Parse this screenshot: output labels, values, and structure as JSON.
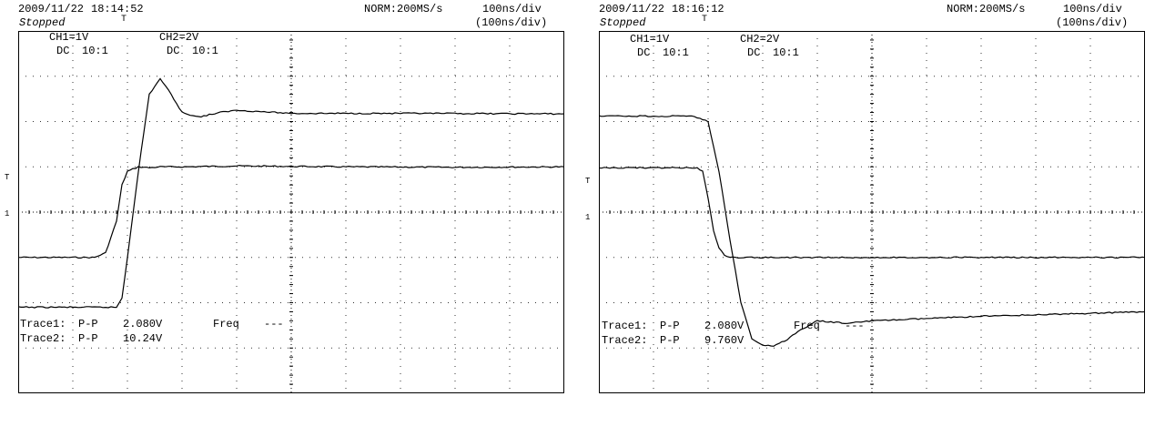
{
  "chart_data": [
    {
      "type": "line",
      "header": {
        "date": "2009/11/22",
        "time": "18:14:52",
        "status": "Stopped",
        "acq": "NORM:200MS/s",
        "timebase": "100ns/div",
        "timebase2": "(100ns/div)",
        "trig_marker": "T"
      },
      "channels": [
        {
          "label": "CH1=1V",
          "coupling": "DC",
          "probe": "10:1"
        },
        {
          "label": "CH2=2V",
          "coupling": "DC",
          "probe": "10:1"
        }
      ],
      "measurements": [
        {
          "trace": "Trace1:",
          "type": "P-P",
          "value": "2.080V"
        },
        {
          "trace": "Trace2:",
          "type": "P-P",
          "value": "10.24V"
        }
      ],
      "freq": {
        "label": "Freq",
        "value": "---"
      },
      "trig_level_marker": "T",
      "gnd_marker": "1",
      "x_divisions": 10,
      "y_divisions": 8,
      "series": [
        {
          "x": [
            0,
            1.4,
            1.6,
            1.8,
            1.9,
            2.0,
            2.2,
            2.4,
            2.6,
            3.0,
            4.0,
            6.0,
            8.0,
            10.0
          ],
          "y": [
            -1.0,
            -1.0,
            -0.9,
            -0.2,
            0.6,
            0.9,
            1.0,
            0.98,
            1.0,
            1.0,
            1.02,
            1.0,
            0.99,
            1.0
          ]
        },
        {
          "x": [
            0,
            1.8,
            1.9,
            2.0,
            2.2,
            2.4,
            2.6,
            2.8,
            3.0,
            3.3,
            3.7,
            4.0,
            5.0,
            7.0,
            10.0
          ],
          "y": [
            -2.1,
            -2.1,
            -1.9,
            -1.0,
            0.9,
            2.6,
            2.95,
            2.6,
            2.2,
            2.1,
            2.2,
            2.25,
            2.18,
            2.18,
            2.17
          ]
        }
      ]
    },
    {
      "type": "line",
      "header": {
        "date": "2009/11/22",
        "time": "18:16:12",
        "status": "Stopped",
        "acq": "NORM:200MS/s",
        "timebase": "100ns/div",
        "timebase2": "(100ns/div)",
        "trig_marker": "T"
      },
      "channels": [
        {
          "label": "CH1=1V",
          "coupling": "DC",
          "probe": "10:1"
        },
        {
          "label": "CH2=2V",
          "coupling": "DC",
          "probe": "10:1"
        }
      ],
      "measurements": [
        {
          "trace": "Trace1:",
          "type": "P-P",
          "value": "2.080V"
        },
        {
          "trace": "Trace2:",
          "type": "P-P",
          "value": "9.760V"
        }
      ],
      "freq": {
        "label": "Freq",
        "value": "---"
      },
      "trig_level_marker": "T",
      "gnd_marker": "1",
      "x_divisions": 10,
      "y_divisions": 8,
      "series": [
        {
          "x": [
            0,
            1.8,
            1.9,
            2.0,
            2.1,
            2.2,
            2.3,
            2.4,
            2.6,
            3.0,
            5.0,
            7.0,
            10.0
          ],
          "y": [
            0.98,
            0.98,
            0.9,
            0.3,
            -0.4,
            -0.8,
            -0.95,
            -1.0,
            -1.0,
            -1.0,
            -1.0,
            -1.0,
            -1.0
          ]
        },
        {
          "x": [
            0,
            1.7,
            2.0,
            2.2,
            2.4,
            2.6,
            2.8,
            3.0,
            3.2,
            3.4,
            3.7,
            4.0,
            4.5,
            5.0,
            7.0,
            10.0
          ],
          "y": [
            2.12,
            2.12,
            2.0,
            0.9,
            -0.6,
            -2.0,
            -2.8,
            -2.95,
            -2.95,
            -2.85,
            -2.6,
            -2.4,
            -2.45,
            -2.4,
            -2.3,
            -2.2
          ]
        }
      ]
    }
  ]
}
